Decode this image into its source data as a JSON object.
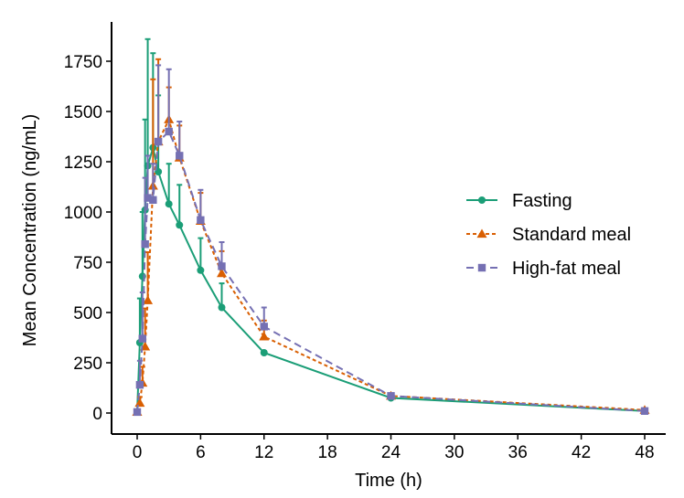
{
  "chart_data": {
    "type": "line",
    "title": "",
    "xlabel": "Time (h)",
    "ylabel": "Mean Concentration (ng/mL)",
    "xlim": [
      -1.5,
      49.5
    ],
    "ylim": [
      -100,
      1950
    ],
    "xticks": [
      0,
      6,
      12,
      18,
      24,
      30,
      36,
      42,
      48
    ],
    "yticks": [
      0,
      250,
      500,
      750,
      1000,
      1250,
      1500,
      1750
    ],
    "grid": false,
    "legend_position": "right",
    "series": [
      {
        "name": "Fasting",
        "color": "#1b9e77",
        "marker": "circle",
        "dash": "solid",
        "x": [
          0,
          0.25,
          0.5,
          0.75,
          1,
          1.5,
          2,
          3,
          4,
          6,
          8,
          12,
          24,
          48
        ],
        "y": [
          5,
          350,
          680,
          1010,
          1230,
          1320,
          1200,
          1040,
          935,
          710,
          525,
          300,
          75,
          10
        ],
        "err": [
          0,
          220,
          320,
          450,
          630,
          470,
          380,
          200,
          200,
          160,
          120,
          0,
          12,
          6
        ]
      },
      {
        "name": "Standard meal",
        "color": "#d95f02",
        "marker": "triangle",
        "dash": "dotted",
        "x": [
          0,
          0.25,
          0.5,
          0.75,
          1,
          1.5,
          2,
          3,
          4,
          6,
          8,
          12,
          24,
          48
        ],
        "y": [
          5,
          50,
          150,
          330,
          560,
          1130,
          1350,
          1460,
          1270,
          955,
          695,
          380,
          85,
          15
        ],
        "err": [
          0,
          30,
          80,
          190,
          240,
          530,
          410,
          160,
          160,
          140,
          110,
          80,
          10,
          6
        ]
      },
      {
        "name": "High-fat meal",
        "color": "#7570b3",
        "marker": "square",
        "dash": "dashed",
        "x": [
          0,
          0.25,
          0.5,
          0.75,
          1,
          1.5,
          2,
          3,
          4,
          6,
          8,
          12,
          24,
          48
        ],
        "y": [
          5,
          140,
          370,
          840,
          1070,
          1060,
          1350,
          1400,
          1280,
          960,
          730,
          430,
          85,
          10
        ],
        "err": [
          0,
          120,
          230,
          330,
          210,
          180,
          380,
          310,
          170,
          150,
          120,
          95,
          12,
          6
        ]
      }
    ]
  }
}
